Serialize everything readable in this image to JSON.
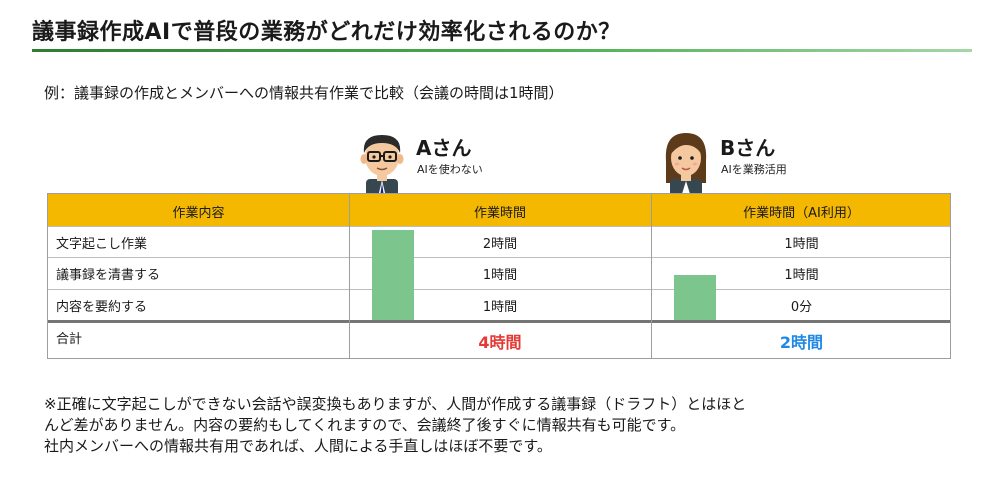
{
  "slide": {
    "title": "議事録作成AIで普段の業務がどれだけ効率化されるのか？",
    "subtitle": "例：議事録の作成とメンバーへの情報共有作業で比較（会議の時間は1時間）"
  },
  "persons": {
    "a": {
      "name": "Aさん",
      "desc": "AIを使わない"
    },
    "b": {
      "name": "Bさん",
      "desc": "AIを業務活用"
    }
  },
  "table": {
    "headers": [
      "作業内容",
      "作業時間",
      "作業時間（AI利用）"
    ],
    "rows": [
      {
        "task": "文字起こし作業",
        "time_a": "2時間",
        "time_b": "1時間"
      },
      {
        "task": "議事録を清書する",
        "time_a": "1時間",
        "time_b": "1時間"
      },
      {
        "task": "内容を要約する",
        "time_a": "1時間",
        "time_b": "0分"
      }
    ],
    "total": {
      "label": "合計",
      "time_a": "4時間",
      "time_b": "2時間"
    }
  },
  "bars": {
    "a_hours": 4,
    "b_hours": 2,
    "max_hours": 4,
    "color": "#7cc58c"
  },
  "notes": [
    "※正確に文字起こしができない会話や誤変換もありますが、人間が作成する議事録（ドラフト）とはほと",
    "んど差がありません。内容の要約もしてくれますので、会議終了後すぐに情報共有も可能です。",
    "社内メンバーへの情報共有用であれば、人間による手直しはほぼ不要です。"
  ],
  "colors": {
    "header_bg": "#f5b800",
    "accent_green": "#2e7d32",
    "total_a": "#e53935",
    "total_b": "#1e88e5"
  },
  "icons": {
    "person_a": "man-avatar-icon",
    "person_b": "woman-avatar-icon"
  }
}
